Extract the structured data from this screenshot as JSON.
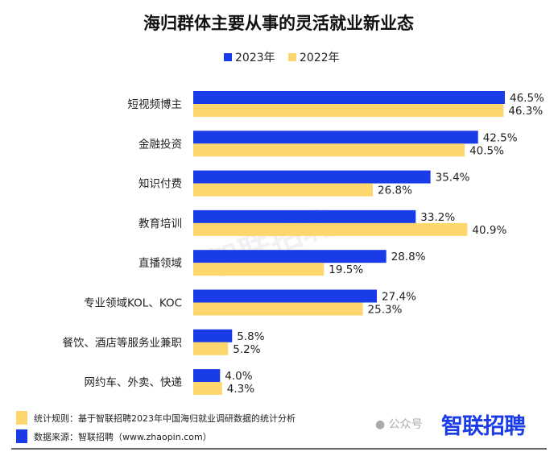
{
  "chart_data": {
    "type": "bar",
    "orientation": "horizontal",
    "title": "海归群体主要从事的灵活就业新业态",
    "categories": [
      "短视频博主",
      "金融投资",
      "知识付费",
      "教育培训",
      "直播领域",
      "专业领域KOL、KOC",
      "餐饮、酒店等服务业兼职",
      "网约车、外卖、快递"
    ],
    "series": [
      {
        "name": "2023年",
        "color": "#1a3be8",
        "values": [
          46.5,
          42.5,
          35.4,
          33.2,
          28.8,
          27.4,
          5.8,
          4.0
        ]
      },
      {
        "name": "2022年",
        "color": "#fdd66e",
        "values": [
          46.3,
          40.5,
          26.8,
          40.9,
          19.5,
          25.3,
          5.2,
          4.3
        ]
      }
    ],
    "value_suffix": "%",
    "xlim": [
      0,
      50
    ],
    "grid": false,
    "legend": "top-center"
  },
  "footer": {
    "rule": "统计规则：基于智联招聘2023年中国海归就业调研数据的统计分析",
    "source": "数据来源：智联招聘（www.zhaopin.com）",
    "wechat": "公众号",
    "logo": "智联招聘",
    "watermark": "智联招聘"
  }
}
